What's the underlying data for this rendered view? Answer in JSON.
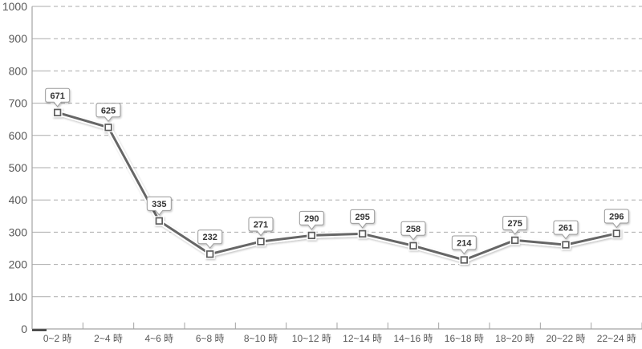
{
  "chart_data": {
    "type": "line",
    "title": "",
    "xlabel": "",
    "ylabel": "",
    "categories": [
      "0~2 時",
      "2~4 時",
      "4~6 時",
      "6~8 時",
      "8~10 時",
      "10~12 時",
      "12~14 時",
      "14~16 時",
      "16~18 時",
      "18~20 時",
      "20~22 時",
      "22~24 時"
    ],
    "values": [
      671,
      625,
      335,
      232,
      271,
      290,
      295,
      258,
      214,
      275,
      261,
      296
    ],
    "data_labels": [
      "671",
      "625",
      "335",
      "232",
      "271",
      "290",
      "295",
      "258",
      "214",
      "275",
      "261",
      "296"
    ],
    "ylim": [
      0,
      1000
    ],
    "ytick_interval": 100,
    "ytick_labels": [
      "0",
      "100",
      "200",
      "300",
      "400",
      "500",
      "600",
      "700",
      "800",
      "900",
      "1000"
    ],
    "grid": "horizontal-dashed",
    "legend": "none",
    "marker": "square",
    "colors": {
      "background": "#ffffff",
      "axis": "#a3a3a3",
      "grid": "#ababab",
      "tick_text": "#595959",
      "series_line": "#666666",
      "series_casing": "#ffffff",
      "marker_fill": "#ffffff",
      "marker_border": "#5c5c5c",
      "label_box_bg": "#ffffff",
      "label_box_border": "#9a9a9a",
      "label_text": "#333333",
      "origin_tick": "#1a1a1a"
    }
  }
}
